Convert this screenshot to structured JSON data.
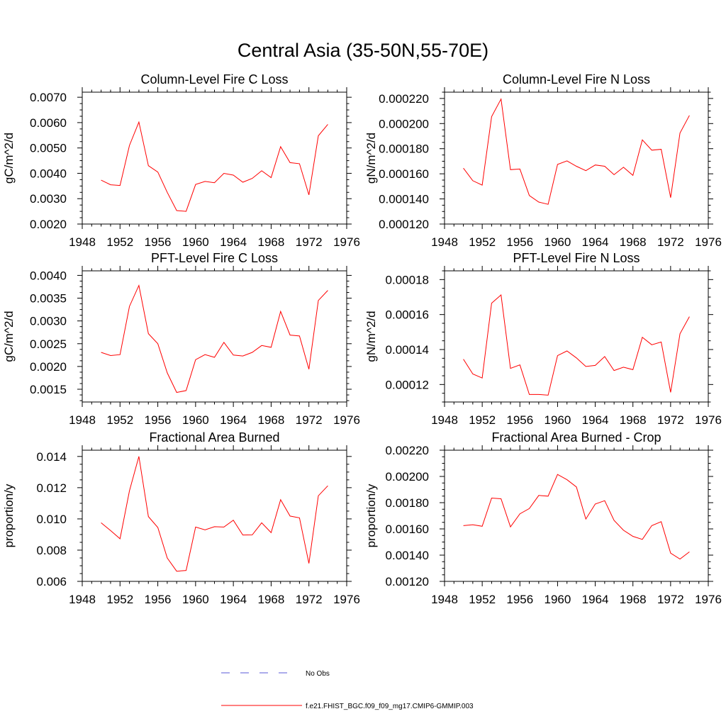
{
  "title": "Central Asia (35-50N,55-70E)",
  "colors": {
    "model": "#ff0000",
    "obs": "#5a5ad8"
  },
  "legend": {
    "obs_label": "No Obs",
    "model_label": "f.e21.FHIST_BGC.f09_f09_mg17.CMIP6-GMMIP.003"
  },
  "chart_data": [
    {
      "type": "line",
      "title": "Column-Level Fire C Loss",
      "ylabel": "gC/m^2/d",
      "xlim": [
        1948,
        1976
      ],
      "ylim": [
        0.002,
        0.0072
      ],
      "xticks": [
        "1948",
        "1952",
        "1956",
        "1960",
        "1964",
        "1968",
        "1972",
        "1976"
      ],
      "yticks": [
        "0.0020",
        "0.0030",
        "0.0040",
        "0.0050",
        "0.0060",
        "0.0070"
      ],
      "ytick_values": [
        0.002,
        0.003,
        0.004,
        0.005,
        0.006,
        0.007
      ],
      "x": [
        1950,
        1951,
        1952,
        1953,
        1954,
        1955,
        1956,
        1957,
        1958,
        1959,
        1960,
        1961,
        1962,
        1963,
        1964,
        1965,
        1966,
        1967,
        1968,
        1969,
        1970,
        1971,
        1972,
        1973,
        1974
      ],
      "series": [
        {
          "values": [
            0.00373,
            0.00355,
            0.00352,
            0.0051,
            0.00602,
            0.0043,
            0.00405,
            0.00325,
            0.00253,
            0.0025,
            0.00356,
            0.00368,
            0.00363,
            0.004,
            0.00393,
            0.00365,
            0.0038,
            0.0041,
            0.00383,
            0.00505,
            0.00442,
            0.00438,
            0.00315,
            0.00548,
            0.00593
          ]
        }
      ]
    },
    {
      "type": "line",
      "title": "Column-Level Fire N Loss",
      "ylabel": "gN/m^2/d",
      "xlim": [
        1948,
        1976
      ],
      "ylim": [
        0.00012,
        0.000225
      ],
      "xticks": [
        "1948",
        "1952",
        "1956",
        "1960",
        "1964",
        "1968",
        "1972",
        "1976"
      ],
      "yticks": [
        "0.000120",
        "0.000140",
        "0.000160",
        "0.000180",
        "0.000200",
        "0.000220"
      ],
      "ytick_values": [
        0.00012,
        0.00014,
        0.00016,
        0.00018,
        0.0002,
        0.00022
      ],
      "x": [
        1950,
        1951,
        1952,
        1953,
        1954,
        1955,
        1956,
        1957,
        1958,
        1959,
        1960,
        1961,
        1962,
        1963,
        1964,
        1965,
        1966,
        1967,
        1968,
        1969,
        1970,
        1971,
        1972,
        1973,
        1974
      ],
      "series": [
        {
          "values": [
            0.0001645,
            0.0001545,
            0.000151,
            0.0002055,
            0.0002195,
            0.0001633,
            0.0001638,
            0.0001427,
            0.0001375,
            0.0001357,
            0.0001675,
            0.0001703,
            0.000166,
            0.0001625,
            0.000167,
            0.000166,
            0.0001593,
            0.0001652,
            0.0001587,
            0.000187,
            0.0001788,
            0.0001795,
            0.000141,
            0.0001925,
            0.0002065
          ]
        }
      ]
    },
    {
      "type": "line",
      "title": "PFT-Level Fire C Loss",
      "ylabel": "gC/m^2/d",
      "xlim": [
        1948,
        1976
      ],
      "ylim": [
        0.00122,
        0.0041
      ],
      "xticks": [
        "1948",
        "1952",
        "1956",
        "1960",
        "1964",
        "1968",
        "1972",
        "1976"
      ],
      "yticks": [
        "0.0015",
        "0.0020",
        "0.0025",
        "0.0030",
        "0.0035",
        "0.0040"
      ],
      "ytick_values": [
        0.0015,
        0.002,
        0.0025,
        0.003,
        0.0035,
        0.004
      ],
      "x": [
        1950,
        1951,
        1952,
        1953,
        1954,
        1955,
        1956,
        1957,
        1958,
        1959,
        1960,
        1961,
        1962,
        1963,
        1964,
        1965,
        1966,
        1967,
        1968,
        1969,
        1970,
        1971,
        1972,
        1973,
        1974
      ],
      "series": [
        {
          "values": [
            0.00231,
            0.00224,
            0.00226,
            0.00332,
            0.00378,
            0.00272,
            0.0025,
            0.00186,
            0.00143,
            0.00147,
            0.00215,
            0.00226,
            0.0022,
            0.00253,
            0.00225,
            0.00223,
            0.00231,
            0.00246,
            0.00242,
            0.00321,
            0.00269,
            0.00267,
            0.00194,
            0.00345,
            0.00367
          ]
        }
      ]
    },
    {
      "type": "line",
      "title": "PFT-Level Fire N Loss",
      "ylabel": "gN/m^2/d",
      "xlim": [
        1948,
        1976
      ],
      "ylim": [
        0.00011,
        0.000185
      ],
      "xticks": [
        "1948",
        "1952",
        "1956",
        "1960",
        "1964",
        "1968",
        "1972",
        "1976"
      ],
      "yticks": [
        "0.00012",
        "0.00014",
        "0.00016",
        "0.00018"
      ],
      "ytick_values": [
        0.00012,
        0.00014,
        0.00016,
        0.00018
      ],
      "x": [
        1950,
        1951,
        1952,
        1953,
        1954,
        1955,
        1956,
        1957,
        1958,
        1959,
        1960,
        1961,
        1962,
        1963,
        1964,
        1965,
        1966,
        1967,
        1968,
        1969,
        1970,
        1971,
        1972,
        1973,
        1974
      ],
      "series": [
        {
          "values": [
            0.0001345,
            0.000126,
            0.0001237,
            0.0001665,
            0.0001712,
            0.0001292,
            0.0001312,
            0.0001143,
            0.0001143,
            0.0001139,
            0.0001365,
            0.0001392,
            0.0001352,
            0.0001303,
            0.0001309,
            0.000136,
            0.000128,
            0.0001299,
            0.0001285,
            0.000147,
            0.0001427,
            0.0001443,
            0.0001155,
            0.000149,
            0.0001588
          ]
        }
      ]
    },
    {
      "type": "line",
      "title": "Fractional Area Burned",
      "ylabel": "proportion/y",
      "xlim": [
        1948,
        1976
      ],
      "ylim": [
        0.006,
        0.0144
      ],
      "xticks": [
        "1948",
        "1952",
        "1956",
        "1960",
        "1964",
        "1968",
        "1972",
        "1976"
      ],
      "yticks": [
        "0.006",
        "0.008",
        "0.010",
        "0.012",
        "0.014"
      ],
      "ytick_values": [
        0.006,
        0.008,
        0.01,
        0.012,
        0.014
      ],
      "x": [
        1950,
        1951,
        1952,
        1953,
        1954,
        1955,
        1956,
        1957,
        1958,
        1959,
        1960,
        1961,
        1962,
        1963,
        1964,
        1965,
        1966,
        1967,
        1968,
        1969,
        1970,
        1971,
        1972,
        1973,
        1974
      ],
      "series": [
        {
          "values": [
            0.00975,
            0.00925,
            0.00873,
            0.0118,
            0.014,
            0.01015,
            0.00945,
            0.0075,
            0.00665,
            0.0067,
            0.00948,
            0.0093,
            0.0095,
            0.00948,
            0.00992,
            0.00897,
            0.00898,
            0.00975,
            0.00912,
            0.01123,
            0.01018,
            0.01007,
            0.00715,
            0.01148,
            0.01212
          ]
        }
      ]
    },
    {
      "type": "line",
      "title": "Fractional Area Burned - Crop",
      "ylabel": "proportion/y",
      "xlim": [
        1948,
        1976
      ],
      "ylim": [
        0.0012,
        0.0022
      ],
      "xticks": [
        "1948",
        "1952",
        "1956",
        "1960",
        "1964",
        "1968",
        "1972",
        "1976"
      ],
      "yticks": [
        "0.00120",
        "0.00140",
        "0.00160",
        "0.00180",
        "0.00200",
        "0.00220"
      ],
      "ytick_values": [
        0.0012,
        0.0014,
        0.0016,
        0.0018,
        0.002,
        0.0022
      ],
      "x": [
        1950,
        1951,
        1952,
        1953,
        1954,
        1955,
        1956,
        1957,
        1958,
        1959,
        1960,
        1961,
        1962,
        1963,
        1964,
        1965,
        1966,
        1967,
        1968,
        1969,
        1970,
        1971,
        1972,
        1973,
        1974
      ],
      "series": [
        {
          "values": [
            0.001625,
            0.001632,
            0.00162,
            0.001835,
            0.00183,
            0.001615,
            0.001715,
            0.001755,
            0.001855,
            0.00185,
            0.002015,
            0.001975,
            0.00192,
            0.001675,
            0.00179,
            0.001815,
            0.001665,
            0.00159,
            0.001543,
            0.00152,
            0.001625,
            0.001655,
            0.001415,
            0.00137,
            0.001425
          ]
        }
      ]
    }
  ]
}
